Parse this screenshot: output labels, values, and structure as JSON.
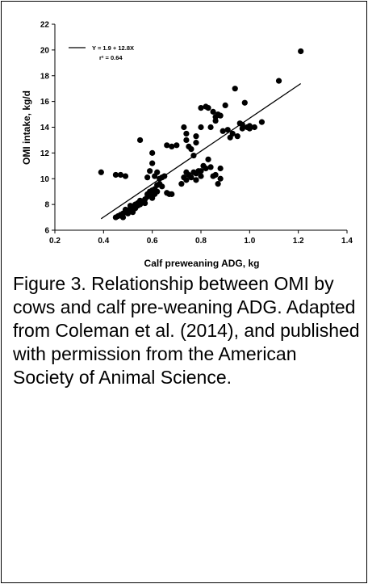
{
  "chart_data": {
    "type": "scatter",
    "xlabel": "Calf preweaning ADG, kg",
    "ylabel": "OMI intake, kg/d",
    "xlim": [
      0.2,
      1.4
    ],
    "ylim": [
      6,
      22
    ],
    "xticks": [
      "0.2",
      "0.4",
      "0.6",
      "0.8",
      "1.0",
      "1.2",
      "1.4"
    ],
    "yticks": [
      "6",
      "8",
      "10",
      "12",
      "14",
      "16",
      "18",
      "20",
      "22"
    ],
    "grid": false,
    "legend": {
      "placement": "top-left",
      "equation": "Y = 1.9 + 12.8X",
      "r2": "r² = 0.64"
    },
    "regression": {
      "intercept": 1.9,
      "slope": 12.8,
      "x_range": [
        0.39,
        1.21
      ]
    },
    "series": [
      {
        "points": [
          [
            0.39,
            10.5
          ],
          [
            0.45,
            10.3
          ],
          [
            0.47,
            10.3
          ],
          [
            0.49,
            10.2
          ],
          [
            0.45,
            7.0
          ],
          [
            0.46,
            7.1
          ],
          [
            0.47,
            7.2
          ],
          [
            0.48,
            7.0
          ],
          [
            0.48,
            7.3
          ],
          [
            0.49,
            7.4
          ],
          [
            0.49,
            7.6
          ],
          [
            0.5,
            7.3
          ],
          [
            0.5,
            7.5
          ],
          [
            0.51,
            7.7
          ],
          [
            0.51,
            7.9
          ],
          [
            0.51,
            7.5
          ],
          [
            0.52,
            7.4
          ],
          [
            0.52,
            7.8
          ],
          [
            0.53,
            7.7
          ],
          [
            0.53,
            8.0
          ],
          [
            0.54,
            7.9
          ],
          [
            0.54,
            8.1
          ],
          [
            0.55,
            8.0
          ],
          [
            0.55,
            8.3
          ],
          [
            0.56,
            8.2
          ],
          [
            0.57,
            8.4
          ],
          [
            0.57,
            8.1
          ],
          [
            0.58,
            8.6
          ],
          [
            0.58,
            8.8
          ],
          [
            0.59,
            9.0
          ],
          [
            0.59,
            8.7
          ],
          [
            0.6,
            9.1
          ],
          [
            0.6,
            8.5
          ],
          [
            0.61,
            9.2
          ],
          [
            0.61,
            8.8
          ],
          [
            0.62,
            9.5
          ],
          [
            0.62,
            9.0
          ],
          [
            0.63,
            9.6
          ],
          [
            0.63,
            10.0
          ],
          [
            0.64,
            10.1
          ],
          [
            0.64,
            9.4
          ],
          [
            0.65,
            10.2
          ],
          [
            0.66,
            8.9
          ],
          [
            0.67,
            8.8
          ],
          [
            0.68,
            8.8
          ],
          [
            0.6,
            12.0
          ],
          [
            0.6,
            11.2
          ],
          [
            0.59,
            10.6
          ],
          [
            0.55,
            13.0
          ],
          [
            0.58,
            10.1
          ],
          [
            0.61,
            10.2
          ],
          [
            0.62,
            10.5
          ],
          [
            0.66,
            12.6
          ],
          [
            0.68,
            12.5
          ],
          [
            0.7,
            12.6
          ],
          [
            0.72,
            9.6
          ],
          [
            0.73,
            10.1
          ],
          [
            0.74,
            10.5
          ],
          [
            0.74,
            9.9
          ],
          [
            0.75,
            10.3
          ],
          [
            0.76,
            10.1
          ],
          [
            0.77,
            10.5
          ],
          [
            0.78,
            9.9
          ],
          [
            0.78,
            10.4
          ],
          [
            0.79,
            10.6
          ],
          [
            0.8,
            10.2
          ],
          [
            0.8,
            10.6
          ],
          [
            0.81,
            11.0
          ],
          [
            0.82,
            10.8
          ],
          [
            0.83,
            11.5
          ],
          [
            0.84,
            10.9
          ],
          [
            0.85,
            10.2
          ],
          [
            0.86,
            10.3
          ],
          [
            0.87,
            9.6
          ],
          [
            0.88,
            10.0
          ],
          [
            0.88,
            10.8
          ],
          [
            0.73,
            14.0
          ],
          [
            0.74,
            13.5
          ],
          [
            0.74,
            13.0
          ],
          [
            0.75,
            12.5
          ],
          [
            0.76,
            12.3
          ],
          [
            0.77,
            11.8
          ],
          [
            0.78,
            13.3
          ],
          [
            0.78,
            12.8
          ],
          [
            0.8,
            14.0
          ],
          [
            0.8,
            15.5
          ],
          [
            0.82,
            15.6
          ],
          [
            0.83,
            15.5
          ],
          [
            0.84,
            14.0
          ],
          [
            0.85,
            15.2
          ],
          [
            0.86,
            14.8
          ],
          [
            0.86,
            14.5
          ],
          [
            0.87,
            15.0
          ],
          [
            0.88,
            14.9
          ],
          [
            0.89,
            13.7
          ],
          [
            0.9,
            15.7
          ],
          [
            0.91,
            13.8
          ],
          [
            0.92,
            13.2
          ],
          [
            0.93,
            13.5
          ],
          [
            0.94,
            17.0
          ],
          [
            0.95,
            13.3
          ],
          [
            0.96,
            14.3
          ],
          [
            0.97,
            14.2
          ],
          [
            0.97,
            13.9
          ],
          [
            0.98,
            15.9
          ],
          [
            0.99,
            14.0
          ],
          [
            1.0,
            14.1
          ],
          [
            1.02,
            14.0
          ],
          [
            1.05,
            14.4
          ],
          [
            1.0,
            13.9
          ],
          [
            1.12,
            17.6
          ],
          [
            1.21,
            19.9
          ]
        ]
      }
    ]
  },
  "caption": "Figure 3.  Relationship between OMI by cows and calf pre-weaning ADG.  Adapted from Coleman et al. (2014), and published with permission from the American Society of Animal Science."
}
